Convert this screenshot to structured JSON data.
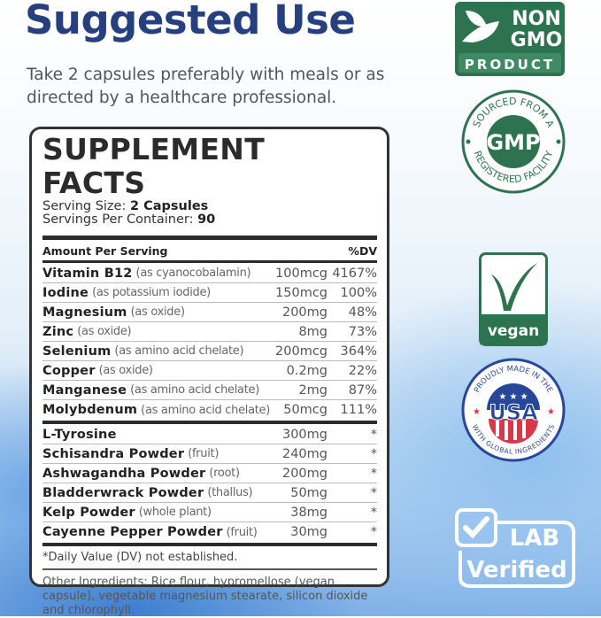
{
  "heading": "Suggested Use",
  "intro": "Take 2 capsules preferably with meals or as directed by a healthcare professional.",
  "panel": {
    "title": "SUPPLEMENT FACTS",
    "serving_size_label": "Serving Size:",
    "serving_size": "2 Capsules",
    "servings_label": "Servings Per Container:",
    "servings": "90",
    "amount_header": "Amount Per Serving",
    "dv_header": "%DV",
    "vitamins": [
      {
        "name": "Vitamin B12",
        "form": "(as cyanocobalamin)",
        "amount": "100mcg",
        "dv": "4167%"
      },
      {
        "name": "Iodine",
        "form": "(as potassium iodide)",
        "amount": "150mcg",
        "dv": "100%"
      },
      {
        "name": "Magnesium",
        "form": "(as oxide)",
        "amount": "200mg",
        "dv": "48%"
      },
      {
        "name": "Zinc",
        "form": "(as oxide)",
        "amount": "8mg",
        "dv": "73%"
      },
      {
        "name": "Selenium",
        "form": "(as amino acid chelate)",
        "amount": "200mcg",
        "dv": "364%"
      },
      {
        "name": "Copper",
        "form": "(as oxide)",
        "amount": "0.2mg",
        "dv": "22%"
      },
      {
        "name": "Manganese",
        "form": "(as amino acid chelate)",
        "amount": "2mg",
        "dv": "87%"
      },
      {
        "name": "Molybdenum",
        "form": "(as amino acid chelate)",
        "amount": "50mcg",
        "dv": "111%"
      }
    ],
    "herbs": [
      {
        "name": "L-Tyrosine",
        "form": "",
        "amount": "300mg",
        "dv": "*"
      },
      {
        "name": "Schisandra Powder",
        "form": "(fruit)",
        "amount": "240mg",
        "dv": "*"
      },
      {
        "name": "Ashwagandha Powder",
        "form": "(root)",
        "amount": "200mg",
        "dv": "*"
      },
      {
        "name": "Bladderwrack Powder",
        "form": "(thallus)",
        "amount": "50mg",
        "dv": "*"
      },
      {
        "name": "Kelp Powder",
        "form": "(whole plant)",
        "amount": "38mg",
        "dv": "*"
      },
      {
        "name": "Cayenne Pepper Powder",
        "form": "(fruit)",
        "amount": "30mg",
        "dv": "*"
      }
    ],
    "dv_note": "*Daily Value (DV) not established.",
    "other_ingredients": "Other Ingredients: Rice flour, hypromellose (vegan capsule), vegetable magnesium stearate, silicon dioxide and chlorophyll."
  },
  "badges": {
    "non_gmo": {
      "line1": "NON",
      "line2": "GMO",
      "line3": "PRODUCT",
      "color": "#2e7350"
    },
    "gmp": {
      "top": "SOURCED FROM A",
      "center": "GMP",
      "bottom": "REGISTERED FACILITY",
      "color": "#2e7350"
    },
    "vegan": {
      "label": "vegan",
      "color": "#2e7350"
    },
    "usa": {
      "top": "PROUDLY MADE IN THE",
      "center": "USA",
      "bottom": "WITH GLOBAL INGREDIENTS",
      "blue": "#27479a",
      "red": "#d63a4a"
    },
    "lab": {
      "line1": "LAB",
      "line2": "Verified"
    }
  }
}
